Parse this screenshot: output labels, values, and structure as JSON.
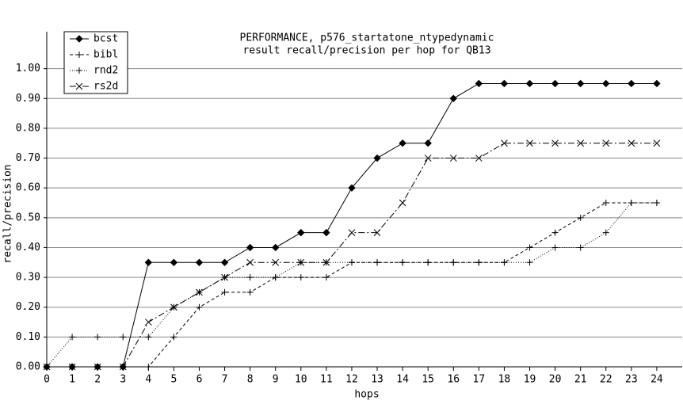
{
  "chart_data": {
    "type": "line",
    "title": "PERFORMANCE, p576_startatone_ntypedynamic",
    "subtitle": "result recall/precision per hop for QB13",
    "xlabel": "hops",
    "ylabel": "recall/precision",
    "x": [
      0,
      1,
      2,
      3,
      4,
      5,
      6,
      7,
      8,
      9,
      10,
      11,
      12,
      13,
      14,
      15,
      16,
      17,
      18,
      19,
      20,
      21,
      22,
      23,
      24
    ],
    "xlim": [
      0,
      25
    ],
    "xticks": [
      0,
      1,
      2,
      3,
      4,
      5,
      6,
      7,
      8,
      9,
      10,
      11,
      12,
      13,
      14,
      15,
      16,
      17,
      18,
      19,
      20,
      21,
      22,
      23,
      24
    ],
    "ylim": [
      0,
      1.1
    ],
    "yticks": [
      {
        "value": 0,
        "label": "0.00"
      },
      {
        "value": 0.1,
        "label": "0.10"
      },
      {
        "value": 0.2,
        "label": "0.20"
      },
      {
        "value": 0.3,
        "label": "0.30"
      },
      {
        "value": 0.4,
        "label": "0.40"
      },
      {
        "value": 0.5,
        "label": "0.50"
      },
      {
        "value": 0.6,
        "label": "0.60"
      },
      {
        "value": 0.7,
        "label": "0.70"
      },
      {
        "value": 0.8,
        "label": "0.80"
      },
      {
        "value": 0.9,
        "label": "0.90"
      },
      {
        "value": 1.0,
        "label": "1.00"
      }
    ],
    "grid": true,
    "legend_position": "top-left",
    "series": [
      {
        "name": "bcst",
        "color": "#000000",
        "dash": "none",
        "marker": "diamond",
        "values": [
          0,
          0,
          0,
          0,
          0.35,
          0.35,
          0.35,
          0.35,
          0.4,
          0.4,
          0.45,
          0.45,
          0.6,
          0.7,
          0.75,
          0.75,
          0.9,
          0.95,
          0.95,
          0.95,
          0.95,
          0.95,
          0.95,
          0.95,
          0.95
        ]
      },
      {
        "name": "bibl",
        "color": "#000000",
        "dash": "4,3",
        "marker": "plus",
        "values": [
          0,
          0,
          0,
          0,
          0,
          0.1,
          0.2,
          0.25,
          0.25,
          0.3,
          0.3,
          0.3,
          0.35,
          0.35,
          0.35,
          0.35,
          0.35,
          0.35,
          0.35,
          0.4,
          0.45,
          0.5,
          0.55,
          0.55,
          0.55
        ]
      },
      {
        "name": "rnd2",
        "color": "#000000",
        "dash": "1,2",
        "marker": "plus",
        "values": [
          0,
          0.1,
          0.1,
          0.1,
          0.1,
          0.2,
          0.25,
          0.3,
          0.3,
          0.3,
          0.35,
          0.35,
          0.35,
          0.35,
          0.35,
          0.35,
          0.35,
          0.35,
          0.35,
          0.35,
          0.4,
          0.4,
          0.45,
          0.55,
          0.55
        ]
      },
      {
        "name": "rs2d",
        "color": "#000000",
        "dash": "8,3,2,3",
        "marker": "cross",
        "values": [
          0,
          0,
          0,
          0,
          0.15,
          0.2,
          0.25,
          0.3,
          0.35,
          0.35,
          0.35,
          0.35,
          0.45,
          0.45,
          0.55,
          0.7,
          0.7,
          0.7,
          0.75,
          0.75,
          0.75,
          0.75,
          0.75,
          0.75,
          0.75
        ]
      }
    ]
  }
}
